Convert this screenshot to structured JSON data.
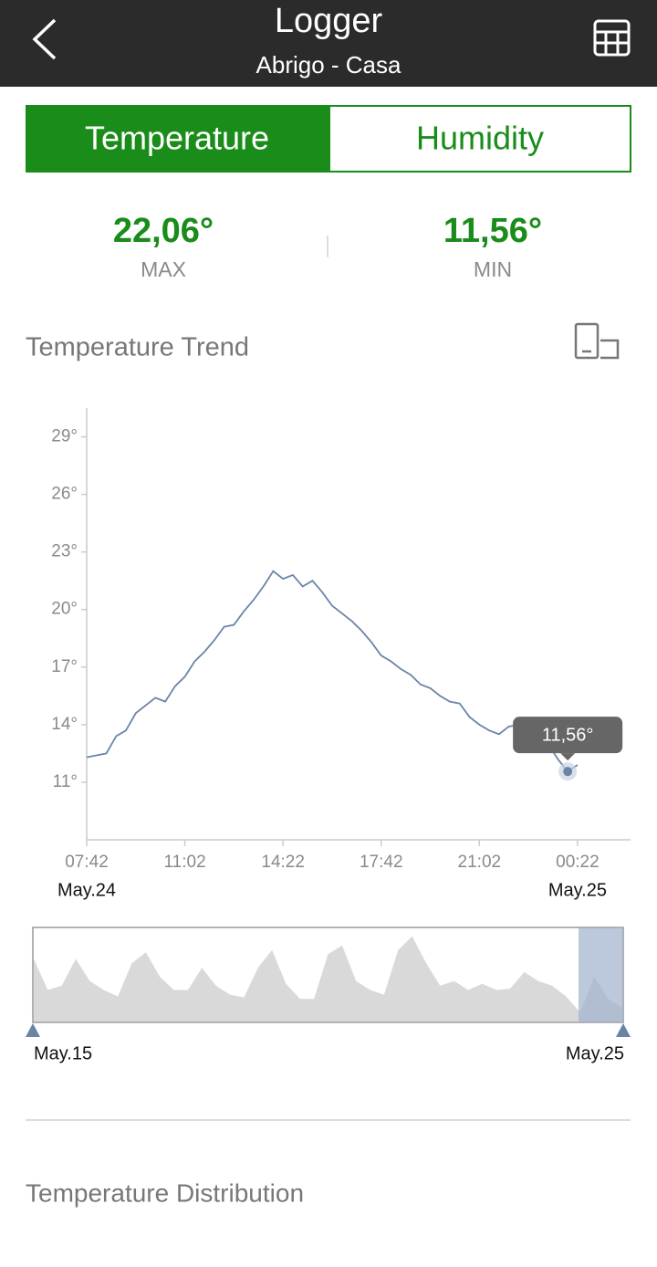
{
  "header": {
    "title": "Logger",
    "subtitle": "Abrigo - Casa"
  },
  "tabs": [
    "Temperature",
    "Humidity"
  ],
  "stats": [
    {
      "value": "22,06°",
      "label": "MAX"
    },
    {
      "value": "11,56°",
      "label": "MIN"
    }
  ],
  "trend_title": "Temperature Trend",
  "chart_data": {
    "type": "line",
    "color": "#6a84a8",
    "x": [
      "07:42",
      "08:02",
      "08:22",
      "08:42",
      "09:02",
      "09:22",
      "09:42",
      "10:02",
      "10:22",
      "10:42",
      "11:02",
      "11:22",
      "11:42",
      "12:02",
      "12:22",
      "12:42",
      "13:02",
      "13:22",
      "13:42",
      "14:02",
      "14:22",
      "14:42",
      "15:02",
      "15:22",
      "15:42",
      "16:02",
      "16:22",
      "16:42",
      "17:02",
      "17:22",
      "17:42",
      "18:02",
      "18:22",
      "18:42",
      "19:02",
      "19:22",
      "19:42",
      "20:02",
      "20:22",
      "20:42",
      "21:02",
      "21:22",
      "21:42",
      "22:02",
      "22:22",
      "22:42",
      "23:02",
      "23:22",
      "23:42",
      "00:02",
      "00:22"
    ],
    "values": [
      12.3,
      12.4,
      12.5,
      13.4,
      13.7,
      14.6,
      15.0,
      15.4,
      15.2,
      16.0,
      16.5,
      17.3,
      17.8,
      18.4,
      19.1,
      19.2,
      19.9,
      20.5,
      21.2,
      22.0,
      21.6,
      21.8,
      21.2,
      21.5,
      20.9,
      20.2,
      19.8,
      19.4,
      18.9,
      18.3,
      17.6,
      17.3,
      16.9,
      16.6,
      16.1,
      15.9,
      15.5,
      15.2,
      15.1,
      14.4,
      14.0,
      13.7,
      13.5,
      13.9,
      14.0,
      13.9,
      13.7,
      13.0,
      12.2,
      11.56,
      11.9
    ],
    "xlim": [
      "07:42",
      "02:10"
    ],
    "xticks": [
      "07:42",
      "11:02",
      "14:22",
      "17:42",
      "21:02",
      "00:22"
    ],
    "ylim": [
      8,
      30.5
    ],
    "yticks": [
      {
        "value": 11,
        "label": "11°"
      },
      {
        "value": 14,
        "label": "14°"
      },
      {
        "value": 17,
        "label": "17°"
      },
      {
        "value": 20,
        "label": "20°"
      },
      {
        "value": 23,
        "label": "23°"
      },
      {
        "value": 26,
        "label": "26°"
      },
      {
        "value": 29,
        "label": "29°"
      }
    ],
    "date_labels": [
      "May.24",
      "May.25"
    ],
    "tooltip": "11,56°"
  },
  "overview": {
    "type": "area",
    "color": "#d9d9d9",
    "values": [
      18.3,
      11.7,
      12.6,
      18.3,
      13.6,
      11.7,
      10.3,
      17.4,
      19.7,
      14.5,
      11.7,
      11.7,
      16.4,
      12.6,
      10.7,
      10.1,
      16.4,
      20.2,
      13.0,
      9.8,
      9.8,
      19.3,
      21.2,
      13.6,
      11.7,
      10.7,
      20.2,
      23.1,
      17.4,
      12.6,
      13.6,
      11.7,
      13.0,
      11.7,
      12.0,
      15.5,
      13.6,
      12.6,
      10.3,
      6.9,
      14.5,
      9.8,
      7.9
    ],
    "ylim": [
      5,
      25
    ],
    "labels": [
      "May.15",
      "May.25"
    ]
  },
  "distribution_title": "Temperature Distribution"
}
